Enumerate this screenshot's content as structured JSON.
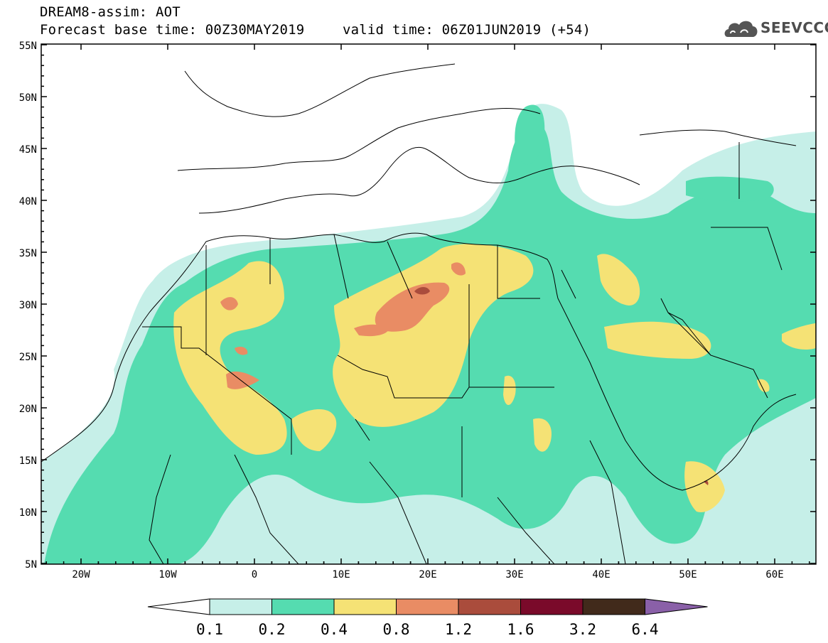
{
  "header": {
    "title": "DREAM8-assim: AOT",
    "base_time": "Forecast base time: 00Z30MAY2019",
    "valid_time": "valid time: 06Z01JUN2019 (+54)"
  },
  "logo": {
    "text": "SEEVCCC",
    "icon": "cloud-icon"
  },
  "map": {
    "lat_labels": [
      "55N",
      "50N",
      "45N",
      "40N",
      "35N",
      "30N",
      "25N",
      "20N",
      "15N",
      "10N",
      "5N"
    ],
    "lon_labels": [
      "20W",
      "10W",
      "0",
      "10E",
      "20E",
      "30E",
      "40E",
      "50E",
      "60E"
    ]
  },
  "legend": {
    "labels": [
      "0.1",
      "0.2",
      "0.4",
      "0.8",
      "1.2",
      "1.6",
      "3.2",
      "6.4"
    ],
    "colors": [
      "#ffffff",
      "#c6efe8",
      "#55dcb0",
      "#f5e275",
      "#e98c64",
      "#aa4c3c",
      "#7a0a2a",
      "#412a1b",
      "#8a60a8"
    ]
  }
}
